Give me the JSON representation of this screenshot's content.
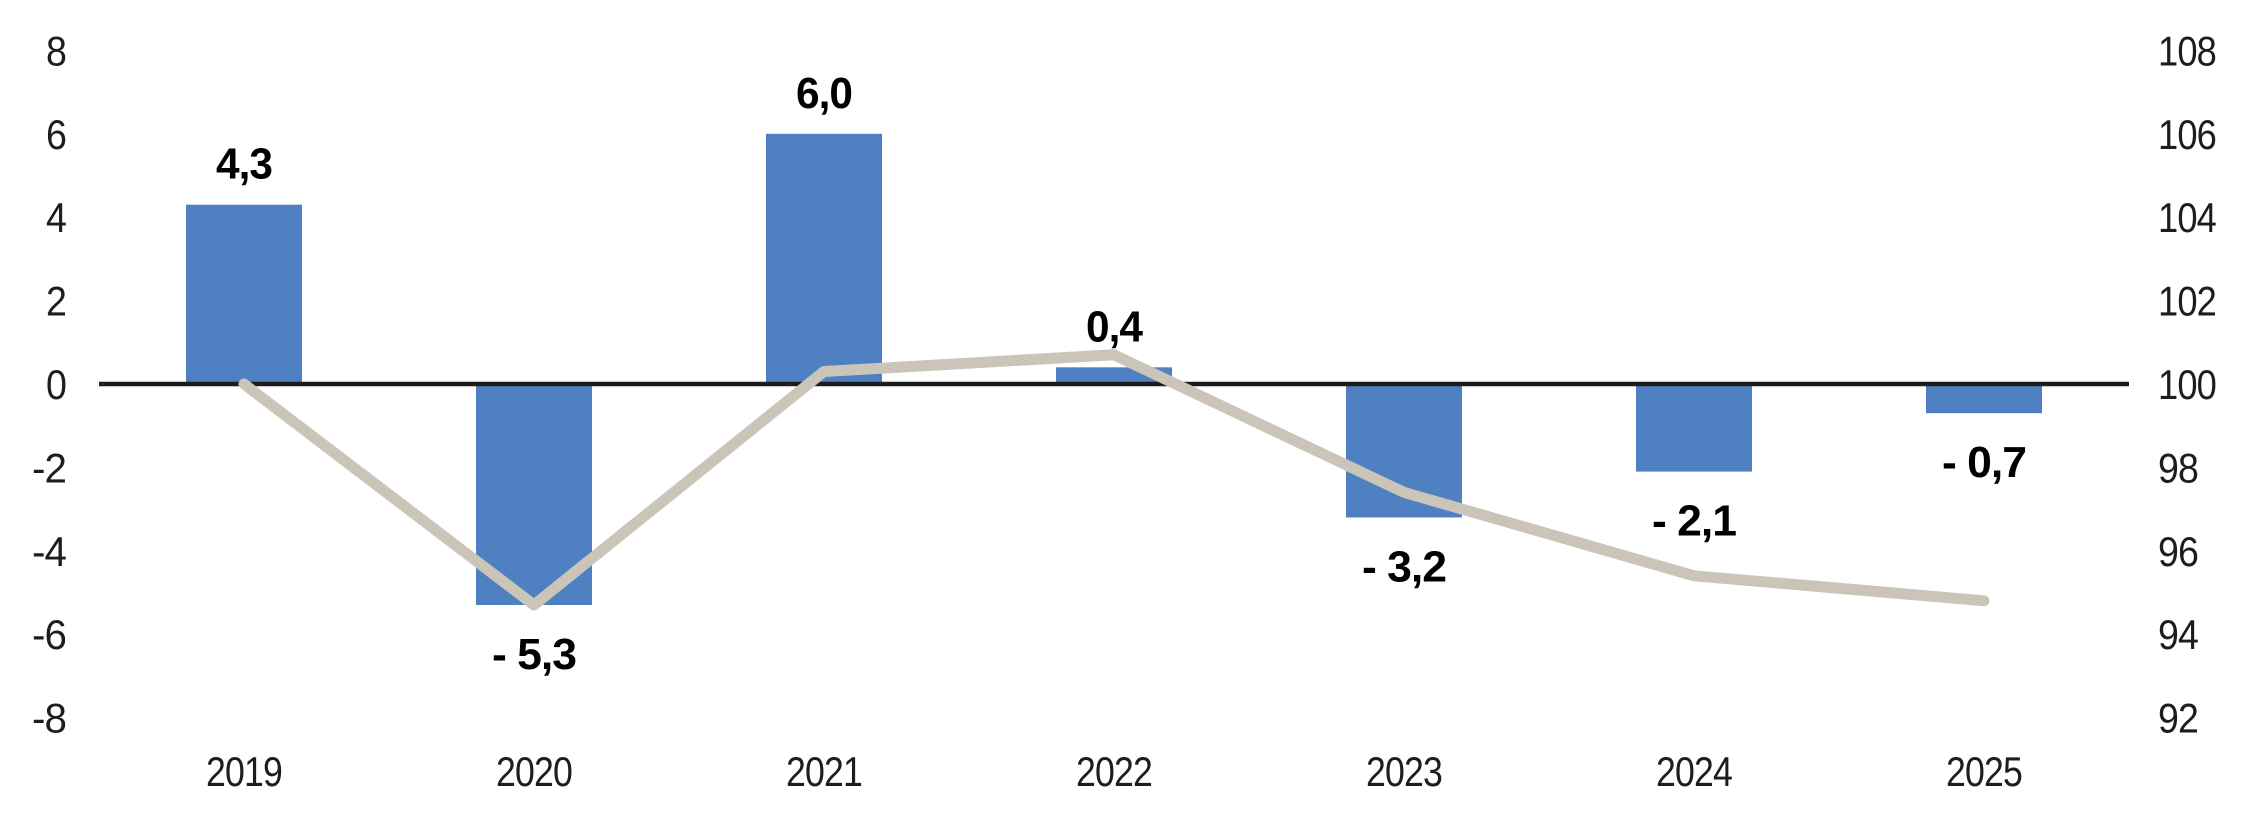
{
  "chart_data": {
    "type": "combo",
    "title": "",
    "grid": false,
    "legend": false,
    "categories": [
      "2019",
      "2020",
      "2021",
      "2022",
      "2023",
      "2024",
      "2025"
    ],
    "series": [
      {
        "name": "annual-change-bars",
        "type": "bar",
        "axis": "left",
        "color": "#4E80C2",
        "values": [
          4.3,
          -5.3,
          6.0,
          0.4,
          -3.2,
          -2.1,
          -0.7
        ],
        "data_labels": [
          "4,3",
          "- 5,3",
          "6,0",
          "0,4",
          "- 3,2",
          "- 2,1",
          "- 0,7"
        ]
      },
      {
        "name": "index-line",
        "type": "line",
        "axis": "right",
        "color": "#CBC5B9",
        "values": [
          100.0,
          94.7,
          100.3,
          100.7,
          97.4,
          95.4,
          94.8
        ]
      }
    ],
    "left_axis": {
      "min": -8,
      "max": 8,
      "ticks": [
        "8",
        "6",
        "4",
        "2",
        "0",
        "-2",
        "-4",
        "-6",
        "-8"
      ]
    },
    "right_axis": {
      "min": 92,
      "max": 108,
      "ticks": [
        "108",
        "106",
        "104",
        "102",
        "100",
        "98",
        "96",
        "94",
        "92"
      ]
    },
    "colors": {
      "bar": "#4E80C2",
      "line": "#CBC5B9",
      "axis": "#1D1D1B",
      "text": "#1D1D1B",
      "background": "#FFFFFF"
    }
  }
}
